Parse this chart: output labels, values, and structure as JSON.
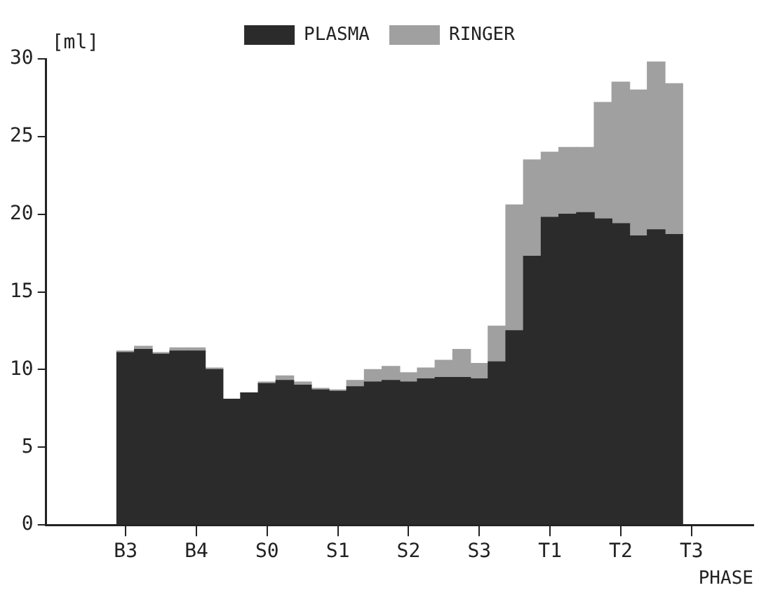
{
  "chart_data": {
    "type": "bar",
    "stacked": true,
    "xlabel": "PHASE",
    "ylabel": "[ml]",
    "categories": [
      null,
      null,
      null,
      null,
      "B3",
      null,
      null,
      null,
      "B4",
      null,
      null,
      null,
      "S0",
      null,
      null,
      null,
      "S1",
      null,
      null,
      null,
      "S2",
      null,
      null,
      null,
      "S3",
      null,
      null,
      null,
      "T1",
      null,
      null,
      null,
      "T2",
      null,
      null,
      null,
      "T3",
      null,
      null,
      null
    ],
    "series": [
      {
        "name": "PLASMA",
        "color": "#2b2b2b",
        "values": [
          null,
          null,
          null,
          null,
          11.1,
          11.3,
          11.0,
          11.2,
          11.2,
          10.0,
          8.1,
          8.5,
          9.1,
          9.3,
          9.0,
          8.7,
          8.6,
          8.9,
          9.2,
          9.3,
          9.2,
          9.4,
          9.5,
          9.5,
          9.4,
          10.5,
          12.5,
          17.3,
          19.8,
          20.0,
          20.1,
          19.7,
          19.4,
          18.6,
          19.0,
          18.7,
          null,
          null,
          null,
          null
        ]
      },
      {
        "name": "RINGER",
        "color": "#a0a0a0",
        "values": [
          null,
          null,
          null,
          null,
          0.1,
          0.2,
          0.1,
          0.2,
          0.2,
          0.1,
          0,
          0,
          0.1,
          0.3,
          0.2,
          0.1,
          0.1,
          0.4,
          0.8,
          0.9,
          0.6,
          0.7,
          1.1,
          1.8,
          1.0,
          2.3,
          8.1,
          6.2,
          4.2,
          4.3,
          4.2,
          7.5,
          9.1,
          9.4,
          10.8,
          9.7,
          null,
          null,
          null,
          null
        ]
      }
    ],
    "ylim": [
      0,
      30
    ],
    "yticks": [
      0,
      5,
      10,
      15,
      20,
      25,
      30
    ],
    "grid": false,
    "legend": "top"
  }
}
